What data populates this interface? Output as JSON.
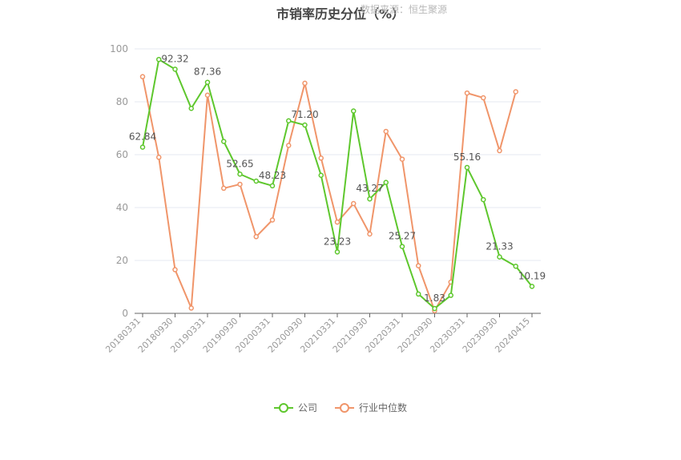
{
  "chart_data": {
    "type": "line",
    "title": "市销率历史分位（%）",
    "watermark": "数据来源：恒生聚源",
    "ylim": [
      0,
      100
    ],
    "yticks": [
      0,
      20,
      40,
      60,
      80,
      100
    ],
    "x_tick_labels": [
      "20180331",
      "20180930",
      "20190331",
      "20190930",
      "20200331",
      "20200930",
      "20210331",
      "20210930",
      "20220331",
      "20220930",
      "20230331",
      "20230930",
      "20240415"
    ],
    "categories": [
      "20180331",
      "20180630",
      "20180930",
      "20181231",
      "20190331",
      "20190630",
      "20190930",
      "20191231",
      "20200331",
      "20200630",
      "20200930",
      "20201231",
      "20210331",
      "20210630",
      "20210930",
      "20211231",
      "20220331",
      "20220630",
      "20220930",
      "20221231",
      "20230331",
      "20230630",
      "20230930",
      "20231231",
      "20240415"
    ],
    "series": [
      {
        "name": "公司",
        "color": "#5ec72d",
        "values": [
          62.84,
          96.0,
          92.32,
          77.5,
          87.36,
          65.0,
          52.65,
          50.0,
          48.23,
          72.8,
          71.2,
          52.2,
          23.23,
          76.5,
          43.27,
          49.5,
          25.27,
          7.3,
          1.83,
          6.8,
          55.16,
          43.0,
          21.33,
          17.8,
          10.19
        ],
        "labels": {
          "0": "62.84",
          "2": "92.32",
          "4": "87.36",
          "6": "52.65",
          "8": "48.23",
          "10": "71.20",
          "12": "23.23",
          "14": "43.27",
          "16": "25.27",
          "18": "1.83",
          "20": "55.16",
          "22": "21.33",
          "24": "10.19"
        }
      },
      {
        "name": "行业中位数",
        "color": "#f0956a",
        "values": [
          89.5,
          59.0,
          16.5,
          2.0,
          82.5,
          47.3,
          48.8,
          29.0,
          35.3,
          63.5,
          87.0,
          58.7,
          34.5,
          41.5,
          30.0,
          68.8,
          58.3,
          18.0,
          1.0,
          11.8,
          83.3,
          81.5,
          61.5,
          83.8,
          null
        ]
      }
    ],
    "legend_position": "bottom-center"
  }
}
